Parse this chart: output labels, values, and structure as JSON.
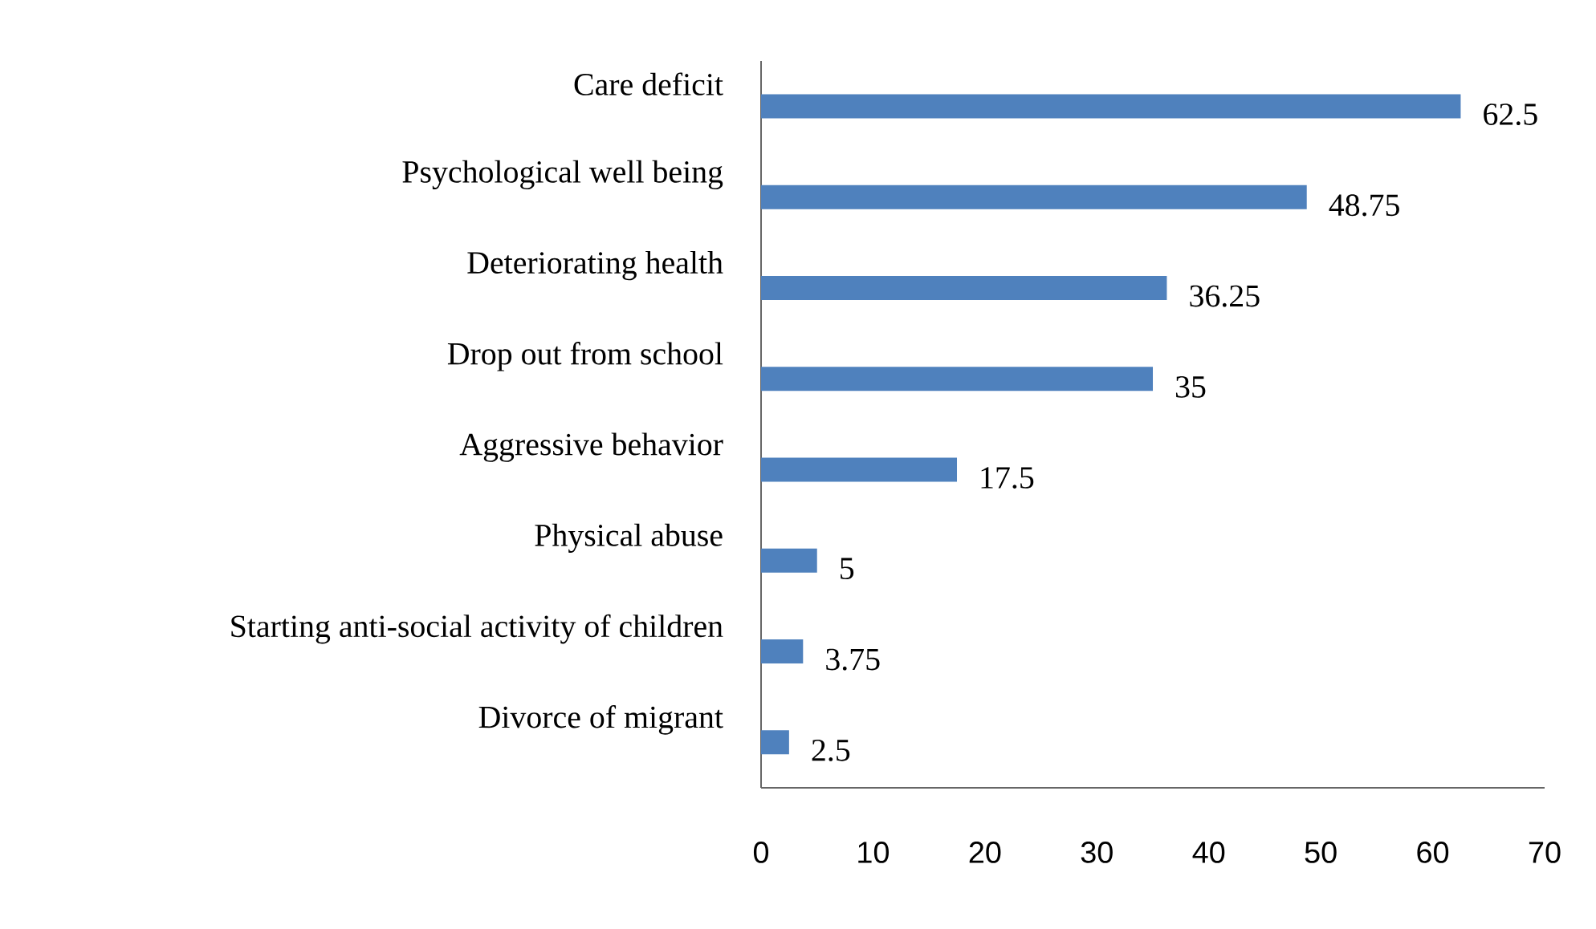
{
  "chart_data": {
    "type": "bar",
    "orientation": "horizontal",
    "categories": [
      "Care deficit",
      "Psychological well being",
      "Deteriorating health",
      "Drop out from school",
      "Aggressive behavior",
      "Physical abuse",
      "Starting anti-social activity of children",
      "Divorce of migrant"
    ],
    "values": [
      62.5,
      48.75,
      36.25,
      35,
      17.5,
      5,
      3.75,
      2.5
    ],
    "color": "#4f81bd",
    "xlim": [
      0,
      70
    ],
    "xticks": [
      0,
      10,
      20,
      30,
      40,
      50,
      60,
      70
    ],
    "data_labels": true
  }
}
